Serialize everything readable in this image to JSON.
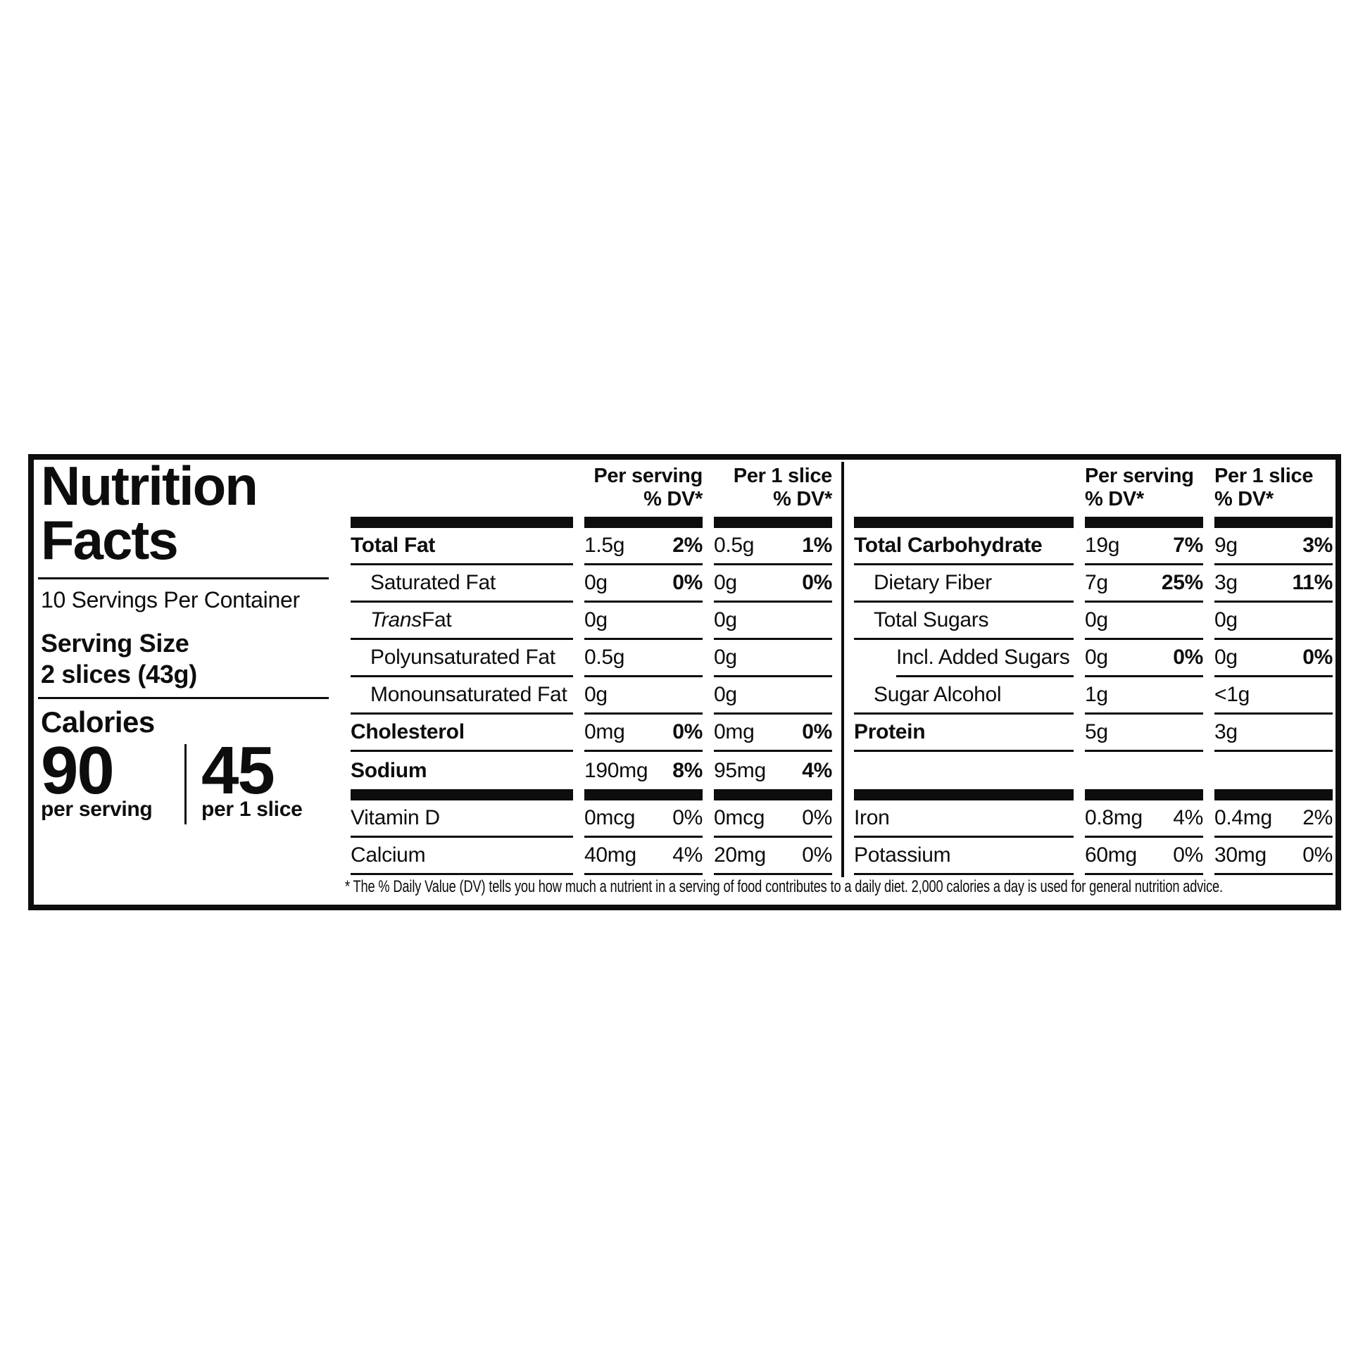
{
  "colors": {
    "ink": "#0d0d0d",
    "paper": "#ffffff"
  },
  "left_panel": {
    "title": "Nutrition\nFacts",
    "servings_per_container": "10 Servings Per Container",
    "serving_size_label": "Serving Size",
    "serving_size_value": "2 slices (43g)",
    "calories_label": "Calories",
    "calories_per_serving_value": "90",
    "calories_per_serving_caption": "per serving",
    "calories_per_slice_value": "45",
    "calories_per_slice_caption": "per 1 slice"
  },
  "tables": {
    "mid": {
      "headers": [
        {
          "line1": "Per serving",
          "line2": "% DV*"
        },
        {
          "line1": "Per 1 slice",
          "line2": "% DV*"
        }
      ],
      "rows_top": [
        {
          "label": "Total Fat",
          "bold": true,
          "cells": [
            {
              "amount": "1.5g",
              "dv": "2%",
              "dv_bold": true
            },
            {
              "amount": "0.5g",
              "dv": "1%",
              "dv_bold": true
            }
          ],
          "line": true
        },
        {
          "label": "Saturated Fat",
          "indent": 1,
          "cells": [
            {
              "amount": "0g",
              "dv": "0%",
              "dv_bold": true
            },
            {
              "amount": "0g",
              "dv": "0%",
              "dv_bold": true
            }
          ],
          "line": true
        },
        {
          "italic_prefix": "Trans",
          "label": " Fat",
          "indent": 1,
          "cells": [
            {
              "amount": "0g",
              "dv": ""
            },
            {
              "amount": "0g",
              "dv": ""
            }
          ],
          "line": true
        },
        {
          "label": "Polyunsaturated Fat",
          "indent": 1,
          "cells": [
            {
              "amount": "0.5g",
              "dv": ""
            },
            {
              "amount": "0g",
              "dv": ""
            }
          ],
          "line": true
        },
        {
          "label": "Monounsaturated Fat",
          "indent": 1,
          "cells": [
            {
              "amount": "0g",
              "dv": ""
            },
            {
              "amount": "0g",
              "dv": ""
            }
          ],
          "line": true
        },
        {
          "label": "Cholesterol",
          "bold": true,
          "cells": [
            {
              "amount": "0mg",
              "dv": "0%",
              "dv_bold": true
            },
            {
              "amount": "0mg",
              "dv": "0%",
              "dv_bold": true
            }
          ],
          "line": true
        },
        {
          "label": "Sodium",
          "bold": true,
          "cells": [
            {
              "amount": "190mg",
              "dv": "8%",
              "dv_bold": true
            },
            {
              "amount": "95mg",
              "dv": "4%",
              "dv_bold": true
            }
          ],
          "line": false
        }
      ],
      "rows_bottom": [
        {
          "label": "Vitamin D",
          "cells": [
            {
              "amount": "0mcg",
              "dv": "0%"
            },
            {
              "amount": "0mcg",
              "dv": "0%"
            }
          ],
          "line": true
        },
        {
          "label": "Calcium",
          "cells": [
            {
              "amount": "40mg",
              "dv": "4%"
            },
            {
              "amount": "20mg",
              "dv": "0%"
            }
          ],
          "line": true
        }
      ]
    },
    "right": {
      "headers": [
        {
          "line1": "Per serving",
          "line2": "% DV*"
        },
        {
          "line1": "Per 1 slice",
          "line2": "% DV*"
        }
      ],
      "rows_top": [
        {
          "label": "Total Carbohydrate",
          "bold": true,
          "cells": [
            {
              "amount": "19g",
              "dv": "7%",
              "dv_bold": true
            },
            {
              "amount": "9g",
              "dv": "3%",
              "dv_bold": true
            }
          ],
          "line": true
        },
        {
          "label": "Dietary Fiber",
          "indent": 1,
          "cells": [
            {
              "amount": "7g",
              "dv": "25%",
              "dv_bold": true
            },
            {
              "amount": "3g",
              "dv": "11%",
              "dv_bold": true
            }
          ],
          "line": true
        },
        {
          "label": "Total Sugars",
          "indent": 1,
          "cells": [
            {
              "amount": "0g",
              "dv": ""
            },
            {
              "amount": "0g",
              "dv": ""
            }
          ],
          "line": true
        },
        {
          "label": "Incl. Added Sugars",
          "indent": 2,
          "line_indent": true,
          "cells": [
            {
              "amount": "0g",
              "dv": "0%",
              "dv_bold": true
            },
            {
              "amount": "0g",
              "dv": "0%",
              "dv_bold": true
            }
          ],
          "line": true
        },
        {
          "label": "Sugar Alcohol",
          "indent": 1,
          "cells": [
            {
              "amount": "1g",
              "dv": ""
            },
            {
              "amount": "<1g",
              "dv": ""
            }
          ],
          "line": true
        },
        {
          "label": "Protein",
          "bold": true,
          "cells": [
            {
              "amount": "5g",
              "dv": ""
            },
            {
              "amount": "3g",
              "dv": ""
            }
          ],
          "line": true
        },
        {
          "blank": true
        }
      ],
      "rows_bottom": [
        {
          "label": "Iron",
          "cells": [
            {
              "amount": "0.8mg",
              "dv": "4%"
            },
            {
              "amount": "0.4mg",
              "dv": "2%"
            }
          ],
          "line": true
        },
        {
          "label": "Potassium",
          "cells": [
            {
              "amount": "60mg",
              "dv": "0%"
            },
            {
              "amount": "30mg",
              "dv": "0%"
            }
          ],
          "line": true
        }
      ]
    }
  },
  "footnote": "* The % Daily Value (DV) tells you how much a nutrient in a serving of food contributes to a daily diet. 2,000 calories a day is used for general nutrition advice."
}
